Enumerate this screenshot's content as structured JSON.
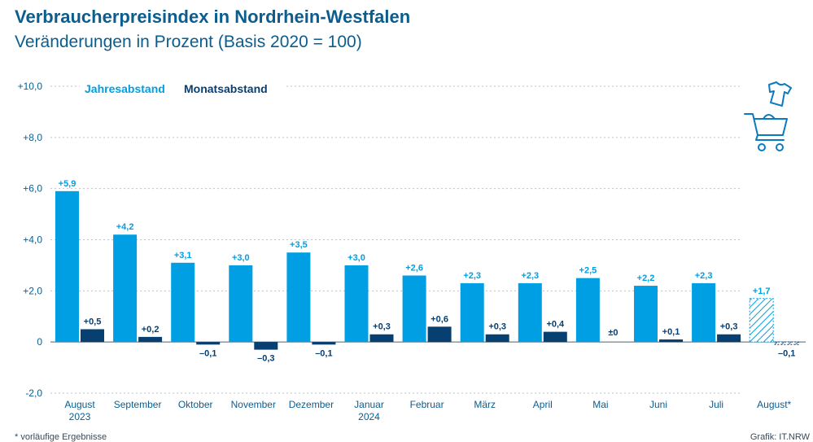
{
  "title": "Verbraucherpreisindex in Nordrhein-Westfalen",
  "subtitle": "Veränderungen in Prozent (Basis 2020 = 100)",
  "footnote": "* vorläufige Ergebnisse",
  "credit": "Grafik: IT.NRW",
  "colors": {
    "jahres": "#009fe3",
    "monats": "#063f70",
    "text": "#0b5d8f",
    "axis": "#555f6a",
    "grid": "#b9c3cc"
  },
  "icons": [
    "shopping-cart-icon",
    "tshirt-icon"
  ],
  "chart_data": {
    "type": "bar",
    "ylim": [
      -2,
      10
    ],
    "yticks": [
      "+10,0",
      "+8,0",
      "+6,0",
      "+4,0",
      "+2,0",
      "0",
      "-2,0"
    ],
    "ytick_values": [
      10,
      8,
      6,
      4,
      2,
      0,
      -2
    ],
    "grid": "dotted horizontal",
    "legend_position": "top-left",
    "categories": [
      [
        "August",
        "2023"
      ],
      [
        "September"
      ],
      [
        "Oktober"
      ],
      [
        "November"
      ],
      [
        "Dezember"
      ],
      [
        "Januar",
        "2024"
      ],
      [
        "Februar"
      ],
      [
        "März"
      ],
      [
        "April"
      ],
      [
        "Mai"
      ],
      [
        "Juni"
      ],
      [
        "Juli"
      ],
      [
        "August*"
      ]
    ],
    "series": [
      {
        "name": "Jahresabstand",
        "values": [
          5.9,
          4.2,
          3.1,
          3.0,
          3.5,
          3.0,
          2.6,
          2.3,
          2.3,
          2.5,
          2.2,
          2.3,
          1.7
        ],
        "labels": [
          "+5,9",
          "+4,2",
          "+3,1",
          "+3,0",
          "+3,5",
          "+3,0",
          "+2,6",
          "+2,3",
          "+2,3",
          "+2,5",
          "+2,2",
          "+2,3",
          "+1,7"
        ]
      },
      {
        "name": "Monatsabstand",
        "values": [
          0.5,
          0.2,
          -0.1,
          -0.3,
          -0.1,
          0.3,
          0.6,
          0.3,
          0.4,
          0.0,
          0.1,
          0.3,
          -0.1
        ],
        "labels": [
          "+0,5",
          "+0,2",
          "–0,1",
          "–0,3",
          "–0,1",
          "+0,3",
          "+0,6",
          "+0,3",
          "+0,4",
          "±0",
          "+0,1",
          "+0,3",
          "–0,1"
        ]
      }
    ],
    "provisional_index": 12
  }
}
